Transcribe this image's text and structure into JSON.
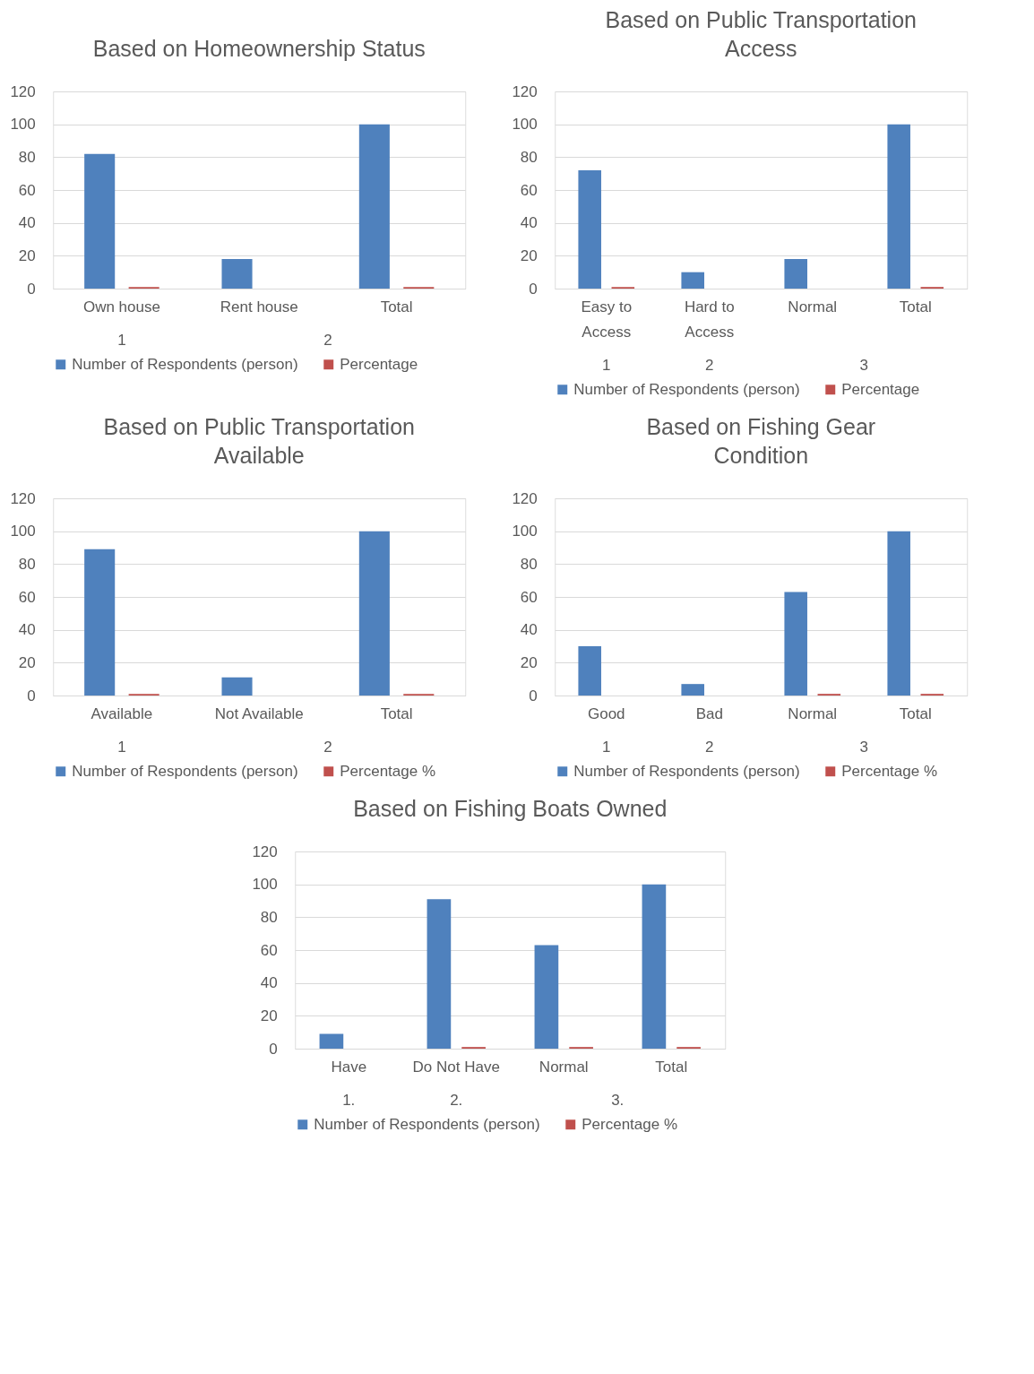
{
  "chart_data": [
    {
      "type": "bar",
      "title": "Based on Homeownership Status",
      "categories": [
        "Own house",
        "Rent house",
        "Total"
      ],
      "series": [
        {
          "name": "Number of Respondents (person)",
          "color": "#4f81bd",
          "values": [
            82,
            18,
            100
          ]
        },
        {
          "name": "Percentage",
          "color": "#c0504d",
          "values": [
            1,
            0,
            1
          ]
        }
      ],
      "annotations": [
        "1",
        "2"
      ],
      "ylim": [
        0,
        120
      ],
      "yticks": [
        0,
        20,
        40,
        60,
        80,
        100,
        120
      ],
      "grid": "y",
      "legend": "bottom"
    },
    {
      "type": "bar",
      "title": "Based on Public Transportation Access",
      "categories": [
        "Easy to Access",
        "Hard to Access",
        "Normal",
        "Total"
      ],
      "series": [
        {
          "name": "Number of Respondents (person)",
          "color": "#4f81bd",
          "values": [
            72,
            10,
            18,
            100
          ]
        },
        {
          "name": "Percentage",
          "color": "#c0504d",
          "values": [
            1,
            0,
            0,
            1
          ]
        }
      ],
      "annotations": [
        "1",
        "2",
        "3"
      ],
      "ylim": [
        0,
        120
      ],
      "yticks": [
        0,
        20,
        40,
        60,
        80,
        100,
        120
      ],
      "grid": "y",
      "legend": "bottom"
    },
    {
      "type": "bar",
      "title": "Based on Public Transportation Available",
      "categories": [
        "Available",
        "Not Available",
        "Total"
      ],
      "series": [
        {
          "name": "Number of Respondents (person)",
          "color": "#4f81bd",
          "values": [
            89,
            11,
            100
          ]
        },
        {
          "name": "Percentage %",
          "color": "#c0504d",
          "values": [
            1,
            0,
            1
          ]
        }
      ],
      "annotations": [
        "1",
        "2"
      ],
      "ylim": [
        0,
        120
      ],
      "yticks": [
        0,
        20,
        40,
        60,
        80,
        100,
        120
      ],
      "grid": "y",
      "legend": "bottom"
    },
    {
      "type": "bar",
      "title": "Based on Fishing Gear Condition",
      "categories": [
        "Good",
        "Bad",
        "Normal",
        "Total"
      ],
      "series": [
        {
          "name": "Number of Respondents (person)",
          "color": "#4f81bd",
          "values": [
            30,
            7,
            63,
            100
          ]
        },
        {
          "name": "Percentage %",
          "color": "#c0504d",
          "values": [
            0,
            0,
            1,
            1
          ]
        }
      ],
      "annotations": [
        "1",
        "2",
        "3"
      ],
      "ylim": [
        0,
        120
      ],
      "yticks": [
        0,
        20,
        40,
        60,
        80,
        100,
        120
      ],
      "grid": "y",
      "legend": "bottom"
    },
    {
      "type": "bar",
      "title": "Based on Fishing Boats Owned",
      "categories": [
        "Have",
        "Do Not Have",
        "Normal",
        "Total"
      ],
      "series": [
        {
          "name": "Number of Respondents (person)",
          "color": "#4f81bd",
          "values": [
            9,
            91,
            63,
            100
          ]
        },
        {
          "name": "Percentage %",
          "color": "#c0504d",
          "values": [
            0,
            1,
            1,
            1
          ]
        }
      ],
      "annotations": [
        "1.",
        "2.",
        "3."
      ],
      "ylim": [
        0,
        120
      ],
      "yticks": [
        0,
        20,
        40,
        60,
        80,
        100,
        120
      ],
      "grid": "y",
      "legend": "bottom"
    }
  ]
}
